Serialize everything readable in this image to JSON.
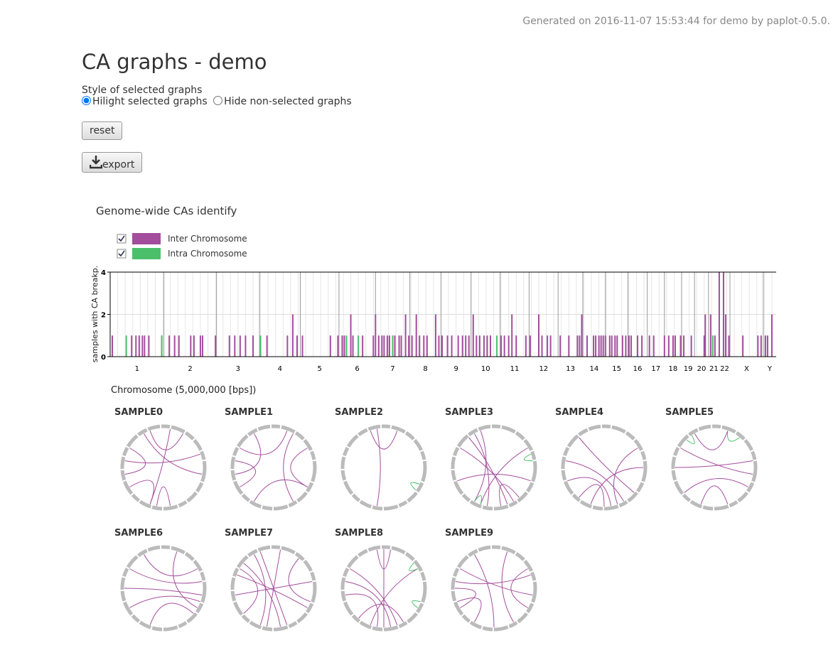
{
  "header": {
    "generated": "Generated on 2016-11-07 15:53:44 for demo by paplot-0.5.0."
  },
  "title": "CA graphs - demo",
  "style": {
    "label": "Style of selected graphs",
    "options": [
      "Hilight selected graphs",
      "Hide non-selected graphs"
    ]
  },
  "buttons": {
    "reset": "reset",
    "export": "export"
  },
  "chart_data": {
    "type": "bar",
    "title": "Genome-wide CAs identify",
    "y_label": "samples with CA breakp.",
    "x_label": "Chromosome (5,000,000 [bps])",
    "xlim": [
      0,
      620
    ],
    "ylim": [
      0,
      4
    ],
    "yticks": [
      0,
      2,
      4
    ],
    "grid": true,
    "chromosomes": [
      {
        "label": "1",
        "start": 0
      },
      {
        "label": "2",
        "start": 50
      },
      {
        "label": "3",
        "start": 99
      },
      {
        "label": "4",
        "start": 139
      },
      {
        "label": "5",
        "start": 177
      },
      {
        "label": "6",
        "start": 213
      },
      {
        "label": "7",
        "start": 247
      },
      {
        "label": "8",
        "start": 279
      },
      {
        "label": "9",
        "start": 308
      },
      {
        "label": "10",
        "start": 336
      },
      {
        "label": "11",
        "start": 363
      },
      {
        "label": "12",
        "start": 390
      },
      {
        "label": "13",
        "start": 417
      },
      {
        "label": "14",
        "start": 440
      },
      {
        "label": "15",
        "start": 461
      },
      {
        "label": "16",
        "start": 482
      },
      {
        "label": "17",
        "start": 500
      },
      {
        "label": "18",
        "start": 516
      },
      {
        "label": "19",
        "start": 532
      },
      {
        "label": "20",
        "start": 544
      },
      {
        "label": "21",
        "start": 557
      },
      {
        "label": "22",
        "start": 567
      },
      {
        "label": "X",
        "start": 577
      },
      {
        "label": "Y",
        "start": 608
      }
    ],
    "series": [
      {
        "name": "Inter Chromosome",
        "color": "#a34d9c",
        "x": [
          2,
          20,
          24,
          27,
          30,
          32,
          36,
          48,
          55,
          60,
          64,
          75,
          78,
          84,
          86,
          98,
          111,
          116,
          121,
          126,
          133,
          146,
          165,
          170,
          174,
          179,
          205,
          212,
          216,
          218,
          224,
          226,
          235,
          245,
          247,
          250,
          253,
          255,
          258,
          260,
          263,
          265,
          269,
          271,
          275,
          278,
          281,
          285,
          288,
          292,
          295,
          303,
          306,
          309,
          314,
          318,
          324,
          328,
          331,
          334,
          338,
          341,
          344,
          348,
          351,
          354,
          364,
          367,
          371,
          374,
          378,
          387,
          391,
          399,
          402,
          407,
          410,
          419,
          427,
          435,
          437,
          439,
          444,
          450,
          452,
          455,
          457,
          459,
          461,
          465,
          467,
          470,
          472,
          477,
          480,
          483,
          485,
          491,
          495,
          502,
          506,
          516,
          520,
          524,
          526,
          531,
          534,
          541,
          553,
          554,
          559,
          563,
          567,
          571,
          573,
          576,
          589,
          603,
          606,
          610,
          612,
          616
        ],
        "values": [
          1,
          1,
          1,
          1,
          1,
          1,
          1,
          1,
          1,
          1,
          1,
          1,
          1,
          1,
          1,
          1,
          1,
          1,
          1,
          1,
          1,
          1,
          1,
          2,
          1,
          1,
          1,
          1,
          1,
          1,
          2,
          1,
          1,
          1,
          2,
          1,
          1,
          1,
          1,
          1,
          1,
          1,
          1,
          1,
          2,
          1,
          1,
          2,
          1,
          1,
          1,
          2,
          1,
          1,
          1,
          1,
          1,
          1,
          1,
          1,
          2,
          1,
          1,
          1,
          1,
          1,
          1,
          1,
          1,
          2,
          1,
          1,
          1,
          2,
          1,
          1,
          1,
          1,
          1,
          1,
          1,
          2,
          1,
          1,
          1,
          1,
          1,
          1,
          1,
          1,
          1,
          1,
          1,
          1,
          1,
          1,
          1,
          1,
          1,
          1,
          1,
          1,
          1,
          1,
          1,
          1,
          1,
          1,
          1,
          2,
          2,
          1,
          4,
          4,
          2,
          1,
          1,
          1,
          1,
          1,
          1,
          2
        ]
      },
      {
        "name": "Intra Chromosome",
        "color": "#4cbf6a",
        "x": [
          15,
          48,
          140,
          220,
          231,
          263,
          360,
          561
        ],
        "values": [
          1,
          1,
          1,
          1,
          1,
          1,
          1,
          1
        ]
      }
    ]
  },
  "samples": [
    {
      "name": "SAMPLE0",
      "links": [
        [
          10,
          200
        ],
        [
          330,
          100
        ],
        [
          300,
          260
        ],
        [
          340,
          30
        ],
        [
          240,
          200
        ],
        [
          170,
          190
        ],
        [
          280,
          70
        ]
      ],
      "intra": []
    },
    {
      "name": "SAMPLE1",
      "links": [
        [
          330,
          260
        ],
        [
          300,
          20
        ],
        [
          30,
          150
        ],
        [
          210,
          120
        ],
        [
          280,
          240
        ],
        [
          60,
          120
        ]
      ],
      "intra": []
    },
    {
      "name": "SAMPLE2",
      "links": [
        [
          340,
          20
        ],
        [
          350,
          190
        ]
      ],
      "intra": [
        [
          115,
          125
        ]
      ]
    },
    {
      "name": "SAMPLE3",
      "links": [
        [
          330,
          190
        ],
        [
          320,
          160
        ],
        [
          60,
          200
        ],
        [
          300,
          150
        ],
        [
          250,
          110
        ],
        [
          140,
          170
        ],
        [
          340,
          210
        ]
      ],
      "intra": [
        [
          70,
          80
        ],
        [
          200,
          210
        ]
      ]
    },
    {
      "name": "SAMPLE4",
      "links": [
        [
          320,
          130
        ],
        [
          280,
          150
        ],
        [
          250,
          170
        ],
        [
          200,
          90
        ],
        [
          60,
          160
        ],
        [
          180,
          220
        ]
      ],
      "intra": []
    },
    {
      "name": "SAMPLE5",
      "links": [
        [
          330,
          20
        ],
        [
          300,
          100
        ],
        [
          270,
          80
        ],
        [
          200,
          160
        ],
        [
          230,
          120
        ]
      ],
      "intra": [
        [
          20,
          40
        ],
        [
          315,
          325
        ]
      ]
    },
    {
      "name": "SAMPLE6",
      "links": [
        [
          300,
          80
        ],
        [
          270,
          100
        ],
        [
          330,
          60
        ],
        [
          240,
          110
        ],
        [
          200,
          130
        ],
        [
          20,
          120
        ]
      ],
      "intra": []
    },
    {
      "name": "SAMPLE7",
      "links": [
        [
          330,
          200
        ],
        [
          310,
          170
        ],
        [
          340,
          160
        ],
        [
          290,
          120
        ],
        [
          260,
          80
        ],
        [
          10,
          190
        ],
        [
          40,
          110
        ],
        [
          300,
          230
        ]
      ],
      "intra": []
    },
    {
      "name": "SAMPLE8",
      "links": [
        [
          0,
          180
        ],
        [
          350,
          10
        ],
        [
          300,
          160
        ],
        [
          280,
          170
        ],
        [
          260,
          190
        ],
        [
          60,
          200
        ],
        [
          220,
          150
        ]
      ],
      "intra": [
        [
          50,
          60
        ],
        [
          110,
          120
        ]
      ]
    },
    {
      "name": "SAMPLE9",
      "links": [
        [
          330,
          180
        ],
        [
          300,
          100
        ],
        [
          280,
          70
        ],
        [
          270,
          240
        ],
        [
          250,
          210
        ],
        [
          20,
          150
        ],
        [
          60,
          120
        ]
      ],
      "intra": []
    }
  ]
}
